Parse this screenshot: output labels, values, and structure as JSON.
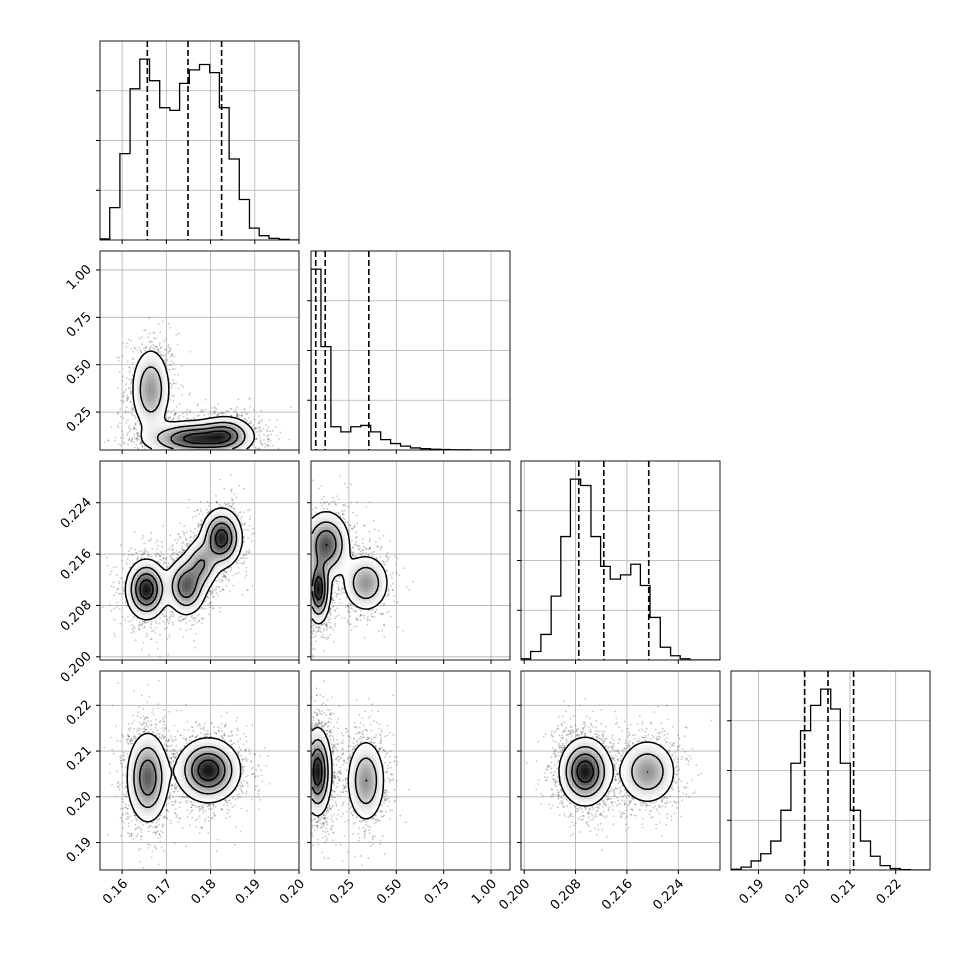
{
  "chart_data": {
    "type": "corner",
    "colors": {
      "line": "#000000",
      "grid": "#b0b0b0",
      "density": "#000000"
    },
    "grid": true,
    "parameters": [
      {
        "range": [
          0.155,
          0.2
        ],
        "ticks": [
          "0.16",
          "0.17",
          "0.18",
          "0.19",
          "0.20"
        ],
        "tick_values": [
          0.16,
          0.17,
          0.18,
          0.19,
          0.2
        ]
      },
      {
        "range": [
          0.05,
          1.1
        ],
        "ticks": [
          "0.25",
          "0.50",
          "0.75",
          "1.00"
        ],
        "tick_values": [
          0.25,
          0.5,
          0.75,
          1.0
        ]
      },
      {
        "range": [
          0.1995,
          0.2305
        ],
        "ticks": [
          "0.200",
          "0.208",
          "0.216",
          "0.224"
        ],
        "tick_values": [
          0.2,
          0.208,
          0.216,
          0.224
        ]
      },
      {
        "range": [
          0.184,
          0.2275
        ],
        "ticks": [
          "0.19",
          "0.20",
          "0.21",
          "0.22"
        ],
        "tick_values": [
          0.19,
          0.2,
          0.21,
          0.22
        ]
      }
    ],
    "bottom_tick_labels": [
      [
        "0.16",
        "0.17",
        "0.18",
        "0.19",
        "0.20"
      ],
      [
        "0.25",
        "0.50",
        "0.75",
        "1.00"
      ],
      [
        "0.200",
        "0.208",
        "0.216",
        "0.224"
      ],
      [
        "0.19",
        "0.20",
        "0.21",
        "0.22"
      ]
    ],
    "left_tick_labels": {
      "row1": [
        "0.25",
        "0.50",
        "0.75",
        "1.00"
      ],
      "row2": [
        "0.200",
        "0.208",
        "0.216",
        "0.224"
      ],
      "row3": [
        "0.19",
        "0.20",
        "0.21",
        "0.22"
      ]
    },
    "histograms": [
      {
        "param": 0,
        "bins": [
          0.155,
          0.1572,
          0.1595,
          0.1618,
          0.164,
          0.1662,
          0.1685,
          0.1708,
          0.173,
          0.1752,
          0.1775,
          0.1798,
          0.182,
          0.1842,
          0.1865,
          0.1888,
          0.191,
          0.1932,
          0.1955,
          0.1978,
          0.2
        ],
        "counts": [
          2,
          60,
          160,
          280,
          335,
          295,
          245,
          240,
          290,
          315,
          325,
          310,
          245,
          150,
          75,
          22,
          8,
          3,
          1,
          0
        ],
        "quantiles": [
          0.1657,
          0.1749,
          0.1825
        ]
      },
      {
        "param": 1,
        "bins": [
          0.05,
          0.1025,
          0.155,
          0.2075,
          0.26,
          0.3125,
          0.365,
          0.4175,
          0.47,
          0.5225,
          0.575,
          0.6275,
          0.68,
          0.7325,
          0.785,
          0.8375,
          0.89,
          0.9425,
          0.995,
          1.0475,
          1.1
        ],
        "counts": [
          700,
          400,
          90,
          70,
          90,
          95,
          70,
          40,
          25,
          15,
          8,
          5,
          3,
          2,
          1,
          1,
          0,
          0,
          0,
          0
        ],
        "quantiles": [
          0.075,
          0.125,
          0.355
        ]
      },
      {
        "param": 2,
        "bins": [
          0.1995,
          0.201,
          0.2026,
          0.2042,
          0.2057,
          0.2072,
          0.2088,
          0.2104,
          0.2119,
          0.2134,
          0.215,
          0.2166,
          0.2181,
          0.2196,
          0.2212,
          0.2228,
          0.2243,
          0.2258,
          0.2274,
          0.229,
          0.2305
        ],
        "counts": [
          3,
          20,
          60,
          150,
          290,
          425,
          410,
          290,
          220,
          190,
          200,
          225,
          175,
          100,
          30,
          10,
          3,
          0,
          0,
          0
        ],
        "quantiles": [
          0.2085,
          0.2124,
          0.2194
        ]
      },
      {
        "param": 3,
        "bins": [
          0.184,
          0.1862,
          0.1884,
          0.1905,
          0.1927,
          0.1949,
          0.1971,
          0.1992,
          0.2014,
          0.2036,
          0.2058,
          0.2079,
          0.2101,
          0.2123,
          0.2145,
          0.2166,
          0.2188,
          0.221,
          0.2232,
          0.2253,
          0.2275
        ],
        "counts": [
          2,
          8,
          25,
          45,
          80,
          165,
          295,
          385,
          455,
          500,
          445,
          295,
          165,
          80,
          38,
          12,
          4,
          1,
          0,
          0
        ],
        "quantiles": [
          0.2001,
          0.2052,
          0.2108
        ]
      }
    ],
    "density_2d": [
      {
        "x_param": 0,
        "y_param": 1,
        "blobs": [
          {
            "cx": 0.1665,
            "cy": 0.37,
            "sx": 0.0022,
            "sy": 0.11,
            "w": 0.6
          },
          {
            "cx": 0.1765,
            "cy": 0.11,
            "sx": 0.0055,
            "sy": 0.045,
            "w": 1.0
          },
          {
            "cx": 0.1835,
            "cy": 0.13,
            "sx": 0.003,
            "sy": 0.05,
            "w": 0.6
          }
        ]
      },
      {
        "x_param": 0,
        "y_param": 2,
        "blobs": [
          {
            "cx": 0.1655,
            "cy": 0.2105,
            "sx": 0.0022,
            "sy": 0.0022,
            "w": 1.0
          },
          {
            "cx": 0.1745,
            "cy": 0.211,
            "sx": 0.0022,
            "sy": 0.0022,
            "w": 0.75
          },
          {
            "cx": 0.1825,
            "cy": 0.2185,
            "sx": 0.0022,
            "sy": 0.0022,
            "w": 0.95
          },
          {
            "cx": 0.178,
            "cy": 0.2145,
            "sx": 0.002,
            "sy": 0.002,
            "w": 0.5
          }
        ]
      },
      {
        "x_param": 1,
        "y_param": 2,
        "blobs": [
          {
            "cx": 0.09,
            "cy": 0.2105,
            "sx": 0.03,
            "sy": 0.0025,
            "w": 1.0
          },
          {
            "cx": 0.13,
            "cy": 0.2175,
            "sx": 0.06,
            "sy": 0.0025,
            "w": 0.8
          },
          {
            "cx": 0.34,
            "cy": 0.2115,
            "sx": 0.06,
            "sy": 0.0022,
            "w": 0.55
          }
        ]
      },
      {
        "x_param": 0,
        "y_param": 3,
        "blobs": [
          {
            "cx": 0.1658,
            "cy": 0.2042,
            "sx": 0.0023,
            "sy": 0.0048,
            "w": 0.75
          },
          {
            "cx": 0.1795,
            "cy": 0.2058,
            "sx": 0.0034,
            "sy": 0.0033,
            "w": 1.0
          }
        ]
      },
      {
        "x_param": 1,
        "y_param": 3,
        "blobs": [
          {
            "cx": 0.085,
            "cy": 0.2055,
            "sx": 0.035,
            "sy": 0.0045,
            "w": 1.0
          },
          {
            "cx": 0.34,
            "cy": 0.2035,
            "sx": 0.05,
            "sy": 0.0045,
            "w": 0.55
          }
        ]
      },
      {
        "x_param": 2,
        "y_param": 3,
        "blobs": [
          {
            "cx": 0.2095,
            "cy": 0.2055,
            "sx": 0.0019,
            "sy": 0.0035,
            "w": 1.0
          },
          {
            "cx": 0.2192,
            "cy": 0.2055,
            "sx": 0.0022,
            "sy": 0.0035,
            "w": 0.55
          }
        ]
      }
    ]
  }
}
